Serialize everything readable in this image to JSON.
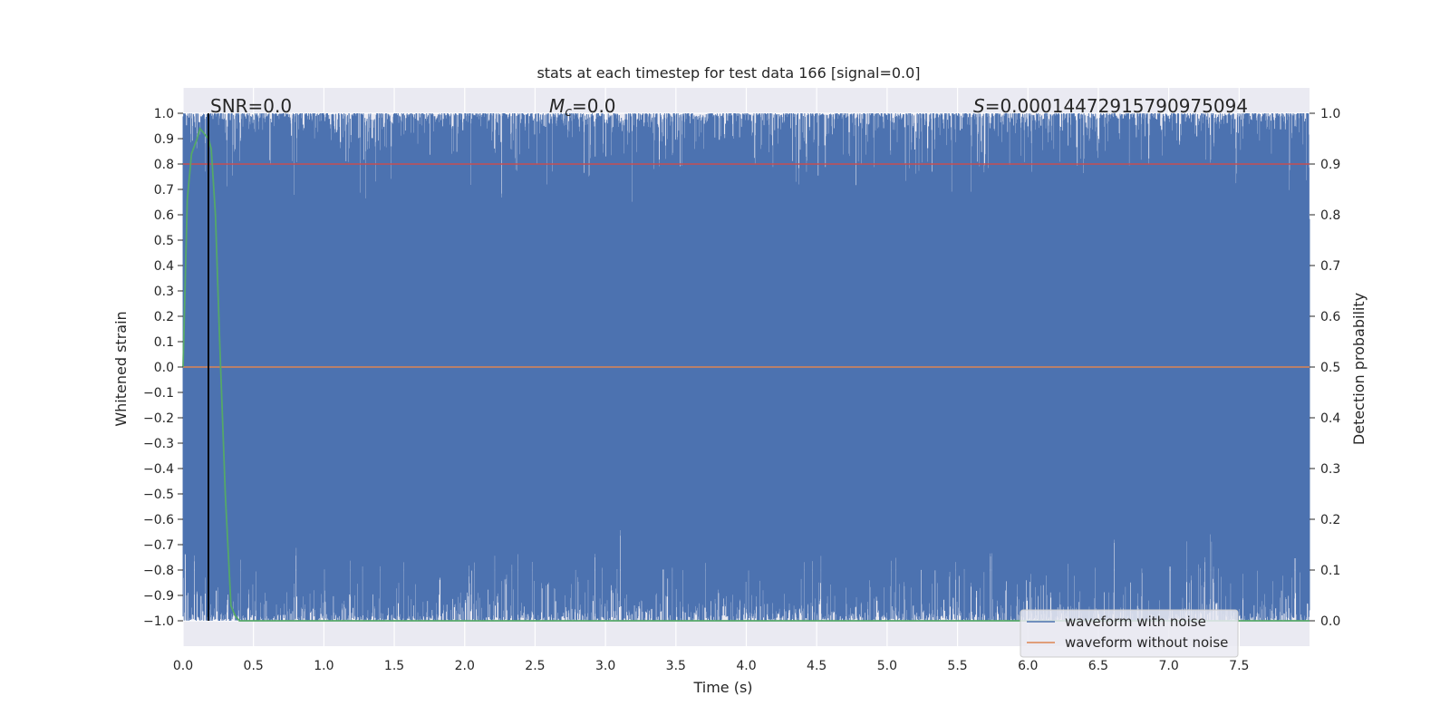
{
  "chart_data": {
    "type": "line",
    "title": "stats at each timestep for test data 166 [signal=0.0]",
    "xlabel": "Time (s)",
    "ylabel_left": "Whitened strain",
    "ylabel_right": "Detection probability",
    "xlim": [
      0.0,
      8.0
    ],
    "ylim_left": [
      -1.1,
      1.1
    ],
    "ylim_right": [
      -0.05,
      1.05
    ],
    "x_ticks": [
      "0.0",
      "0.5",
      "1.0",
      "1.5",
      "2.0",
      "2.5",
      "3.0",
      "3.5",
      "4.0",
      "4.5",
      "5.0",
      "5.5",
      "6.0",
      "6.5",
      "7.0",
      "7.5"
    ],
    "y_left_ticks": [
      "1.0",
      "0.9",
      "0.8",
      "0.7",
      "0.6",
      "0.5",
      "0.4",
      "0.3",
      "0.2",
      "0.1",
      "0.0",
      "−0.1",
      "−0.2",
      "−0.3",
      "−0.4",
      "−0.5",
      "−0.6",
      "−0.7",
      "−0.8",
      "−0.9",
      "−1.0"
    ],
    "y_right_ticks": [
      "1.0",
      "0.9",
      "0.8",
      "0.7",
      "0.6",
      "0.5",
      "0.4",
      "0.3",
      "0.2",
      "0.1",
      "0.0"
    ],
    "grid": true,
    "legend_position": "bottom-right",
    "annotations": {
      "snr": "SNR=0.0",
      "mc_symbol": "M",
      "mc_sub": "c",
      "mc_value": "=0.0",
      "s_symbol": "S",
      "s_value": "=0.00014472915790975094"
    },
    "series": [
      {
        "name": "waveform with noise",
        "color": "#4c72b0",
        "description_values": "dense whitened noise spanning about -1.0 to 1.0 from t=0 to t=8"
      },
      {
        "name": "waveform without noise",
        "color": "#dd8452",
        "x": [
          0.0,
          8.0
        ],
        "y": [
          0.0,
          0.0
        ]
      },
      {
        "color": "#55a868",
        "axis": "right",
        "x": [
          0.0,
          0.03,
          0.06,
          0.1,
          0.12,
          0.15,
          0.18,
          0.2,
          0.23,
          0.26,
          0.3,
          0.34,
          0.37,
          0.4,
          8.0
        ],
        "y": [
          0.5,
          0.83,
          0.92,
          0.95,
          0.97,
          0.96,
          0.95,
          0.93,
          0.8,
          0.55,
          0.25,
          0.03,
          0.01,
          0.0,
          0.0
        ]
      },
      {
        "color": "#c44e52",
        "axis": "right",
        "x": [
          0.0,
          8.0
        ],
        "y": [
          0.9,
          0.9
        ]
      },
      {
        "color": "#000000",
        "type": "vline",
        "x": 0.18
      }
    ]
  }
}
